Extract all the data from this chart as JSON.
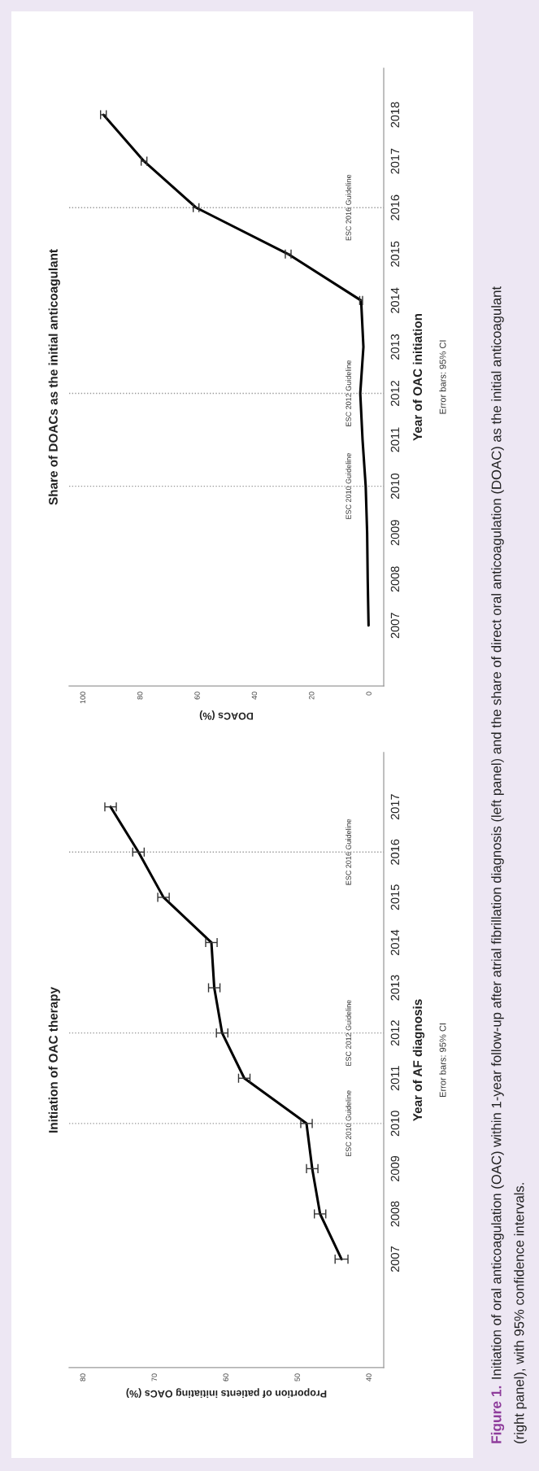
{
  "chart_data": [
    {
      "type": "line",
      "title": "Initiation of OAC therapy",
      "xlabel": "Proportion of patients initiating OACs (%)",
      "ylabel": "Year of AF diagnosis",
      "annotations": [
        "Error bars: 95% CI"
      ],
      "x": [
        43.9,
        46.9,
        48.0,
        48.8,
        57.5,
        60.6,
        61.7,
        62.1,
        68.8,
        72.3,
        76.2
      ],
      "values": [
        2007,
        2008,
        2009,
        2010,
        2011,
        2012,
        2013,
        2014,
        2015,
        2016,
        2017
      ],
      "xerrors": [
        0.9,
        0.8,
        0.8,
        0.8,
        0.8,
        0.8,
        0.8,
        0.8,
        0.8,
        0.8,
        0.8
      ],
      "color": "#000000",
      "xlim": [
        82,
        38
      ],
      "xticks": [
        40,
        50,
        60,
        70,
        80
      ],
      "ylim": [
        2004.6,
        2018.2
      ],
      "yticks": [
        2007,
        2008,
        2009,
        2010,
        2011,
        2012,
        2013,
        2014,
        2015,
        2016,
        2017
      ],
      "ref_lines": [
        {
          "axis": "y",
          "value": 2010,
          "label": "ESC 2010 Guideline",
          "color": "#999999",
          "line_style": "dotted"
        },
        {
          "axis": "y",
          "value": 2012,
          "label": "ESC 2012 Guideline",
          "color": "#999999",
          "line_style": "dotted"
        },
        {
          "axis": "y",
          "value": 2016,
          "label": "ESC 2016 Guideline",
          "color": "#999999",
          "line_style": "dotted"
        }
      ]
    },
    {
      "type": "line",
      "title": "Share of DOACs as the initial anticoagulant",
      "xlabel": "DOACs (%)",
      "ylabel": "Year of OAC initiation",
      "annotations": [
        "Error bars: 95% CI",
        "Figure 1.",
        "Initiation of oral anticoagulation (OAC) within 1-year follow-up after atrial fibrillation diagnosis (left panel) and the share of direct oral anticoagulation (DOAC) as the initial anticoagulant\n(right panel), with 95% confidence intervals."
      ],
      "x": [
        0.3,
        0.6,
        0.8,
        1.3,
        2.4,
        3.2,
        2.1,
        2.9,
        28.4,
        60.6,
        78.8,
        93.0
      ],
      "values": [
        2007,
        2008,
        2009,
        2010,
        2011,
        2012,
        2013,
        2014,
        2015,
        2016,
        2017,
        2018
      ],
      "xerrors": [
        null,
        null,
        null,
        null,
        null,
        null,
        null,
        0.5,
        1,
        1,
        1,
        1
      ],
      "color": "#000000",
      "xlim": [
        105,
        -5
      ],
      "xticks": [
        0,
        20,
        40,
        60,
        80,
        100
      ],
      "ylim": [
        2005.7,
        2019.0
      ],
      "yticks": [
        2007,
        2008,
        2009,
        2010,
        2011,
        2012,
        2013,
        2014,
        2015,
        2016,
        2017,
        2018
      ],
      "ref_lines": [
        {
          "axis": "y",
          "value": 2010,
          "label": "ESC 2010 Guideline",
          "color": "#999999",
          "line_style": "dotted"
        },
        {
          "axis": "y",
          "value": 2012,
          "label": "ESC 2012 Guideline",
          "color": "#999999",
          "line_style": "dotted"
        },
        {
          "axis": "y",
          "value": 2016,
          "label": "ESC 2016 Guideline",
          "color": "#999999",
          "line_style": "dotted"
        }
      ]
    }
  ]
}
